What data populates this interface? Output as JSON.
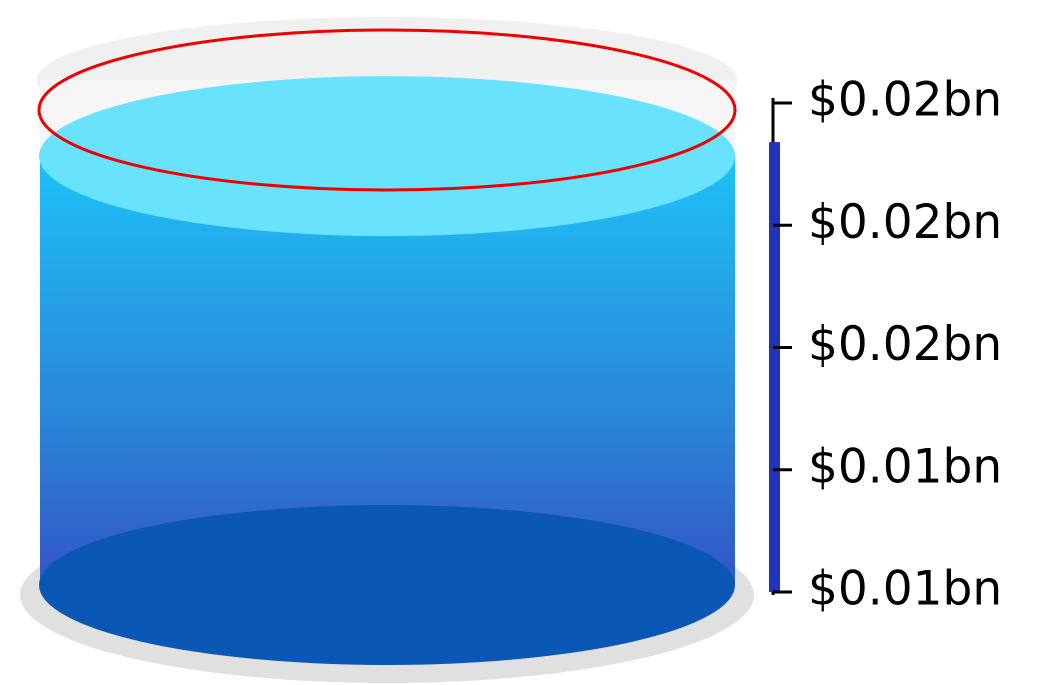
{
  "chart_data": {
    "type": "cylinder-gauge",
    "value": 0.0192,
    "ylim": [
      0.01,
      0.02
    ],
    "yticks": [
      {
        "value": 0.01,
        "label": "$0.01bn"
      },
      {
        "value": 0.0125,
        "label": "$0.01bn"
      },
      {
        "value": 0.015,
        "label": "$0.02bn"
      },
      {
        "value": 0.0175,
        "label": "$0.02bn"
      },
      {
        "value": 0.02,
        "label": "$0.02bn"
      }
    ],
    "color": "#2233bb"
  }
}
